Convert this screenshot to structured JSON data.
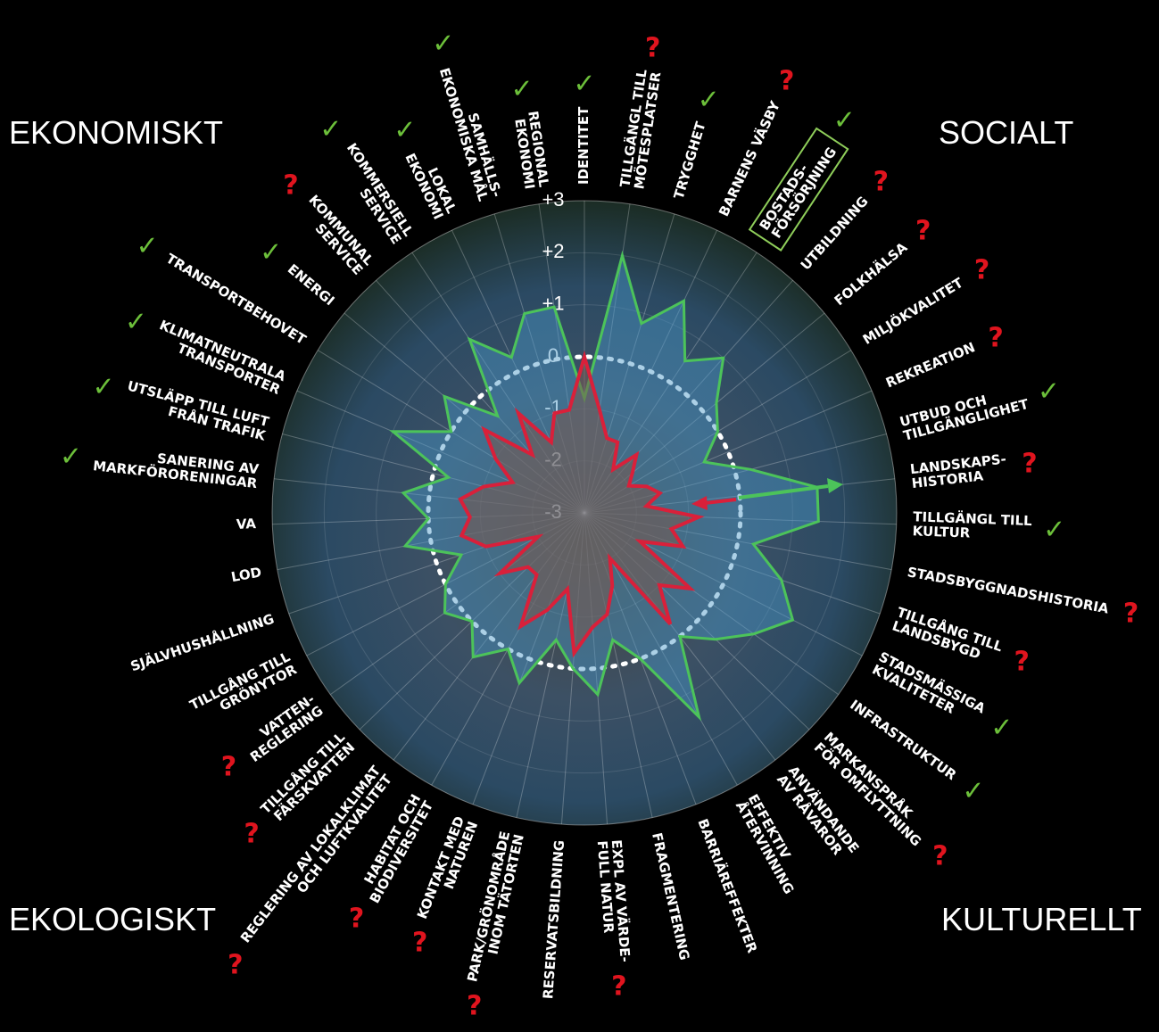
{
  "chart_data": {
    "type": "radar",
    "quadrants": [
      "EKONOMISKT",
      "SOCIALT",
      "EKOLOGISKT",
      "KULTURELLT"
    ],
    "categories": [
      "IDENTITET",
      "TILLGÄNGL TILL\nMÖTESPLATSER",
      "TRYGGHET",
      "BARNENS VÄSBY",
      "BOSTADS-\nFÖRSÖRJNING",
      "UTBILDNING",
      "FOLKHÄLSA",
      "MILJÖKVALITET",
      "REKREATION",
      "UTBUD OCH\nTILLGÄNGLIGHET",
      "LANDSKAPS-\nHISTORIA",
      "TILLGÄNGL TILL\nKULTUR",
      "STADSBYGGNADSHISTORIA",
      "TILLGÅNG TILL\nLANDSBYGD",
      "STADSMÄSSIGA\nKVALITETER",
      "INFRASTRUKTUR",
      "MARKANSPRÅK\nFÖR OMFLYTTNING",
      "ANVÄNDANDE\nAV RÅVAROR",
      "EFFEKTIV\nÅTERVINNING",
      "BARRIÄREFFEKTER",
      "FRAGMENTERING",
      "EXPL AV VÄRDE-\nFULL NATUR",
      "RESERVATSBILDNING",
      "PARK/GRÖNOMRÅDE\nINOM TÄTORTEN",
      "KONTAKT MED\nNATUREN",
      "HABITAT OCH\nBIODIVERSITET",
      "REGLERING AV LOKALKLIMAT\nOCH LUFTKVALITET",
      "TILLGÅNG TILL\nFÄRSKVATTEN",
      "VATTEN-\nREGLERING",
      "TILLGÅNG TILL\nGRÖNYTOR",
      "SJÄLVHUSHÅLLNING",
      "LOD",
      "VA",
      "SANERING AV\nMARKFÖRORENINGAR",
      "UTSLÄPP TILL LUFT\nFRÅN TRAFIK",
      "KLIMATNEUTRALA\nTRANSPORTER",
      "TRANSPORTBEHOVET",
      "ENERGI",
      "KOMMUNAL\nSERVICE",
      "KOMMERSIELL\nSERVICE",
      "LOKAL\nEKONOMI",
      "SAMHÄLLS-\nEKONOMISKA MÅL",
      "REGIONAL\nEKONOMI"
    ],
    "status": [
      "✓",
      "?",
      "✓",
      "?",
      "✓",
      "?",
      "?",
      "?",
      "?",
      "✓",
      "?",
      "✓",
      "?",
      "?",
      "✓",
      "✓",
      "?",
      null,
      null,
      null,
      null,
      "?",
      null,
      "?",
      "?",
      "?",
      "?",
      "?",
      "?",
      null,
      null,
      null,
      null,
      "✓",
      "✓",
      "✓",
      "✓",
      "✓",
      "?",
      "✓",
      "✓",
      "✓",
      "✓"
    ],
    "rlim": [
      -3,
      3
    ],
    "rticks": [
      {
        "value": 3,
        "label": "+3"
      },
      {
        "value": 2,
        "label": "+2"
      },
      {
        "value": 1,
        "label": "+1"
      },
      0,
      -1,
      -2,
      -3
    ],
    "series": [
      {
        "color": "#4cc35a",
        "values": [
          -0.8,
          2.0,
          0.8,
          1.5,
          0.5,
          1.0,
          0.3,
          0.0,
          -0.5,
          0.3,
          1.5,
          1.5,
          0.3,
          1.0,
          1.5,
          1.0,
          0.5,
          0.0,
          1.5,
          0.0,
          -0.5,
          0.5,
          0.0,
          -0.5,
          0.5,
          0.0,
          0.5,
          0.0,
          0.3,
          0.0,
          -0.5,
          0.5,
          0.0,
          0.5,
          -0.3,
          1.0,
          0.0,
          0.5,
          -0.5,
          1.0,
          0.3,
          1.0,
          1.0
        ]
      },
      {
        "color": "#d9203a",
        "values": [
          0.0,
          -1.0,
          -1.5,
          -1.5,
          -2.0,
          -1.5,
          -1.8,
          -2.0,
          -1.7,
          -1.5,
          -1.8,
          -0.8,
          -1.3,
          -1.0,
          -1.8,
          -0.5,
          -1.0,
          -0.3,
          -2.0,
          -1.5,
          -1.0,
          -0.8,
          -0.3,
          -1.5,
          -1.0,
          -0.5,
          -1.5,
          -1.5,
          -1.0,
          -2.0,
          -1.0,
          -0.6,
          -0.8,
          -0.6,
          -1.0,
          -1.5,
          -1.0,
          -0.5,
          -1.5,
          -0.7,
          -1.5,
          -1.0,
          -1.0
        ]
      }
    ]
  }
}
